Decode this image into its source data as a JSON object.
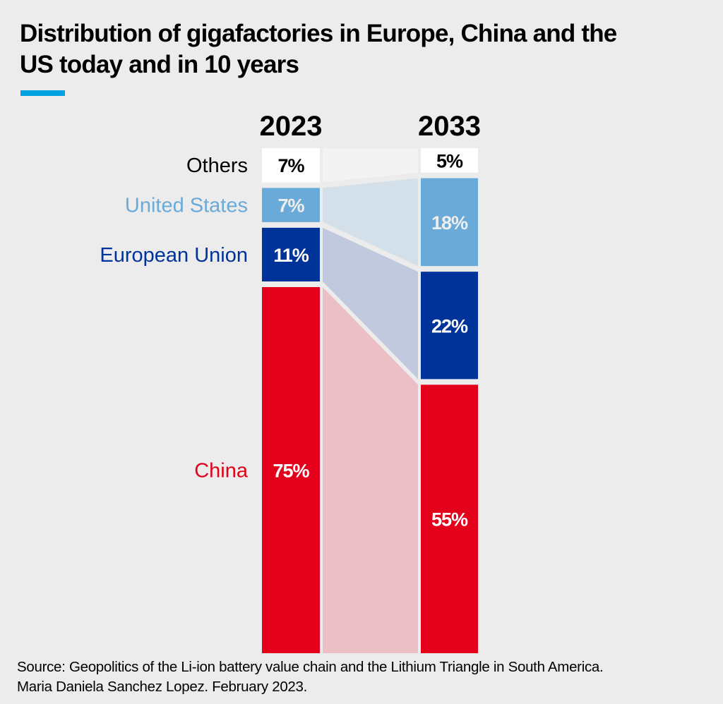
{
  "title": "Distribution of gigafactories in Europe, China and the US today and in 10 years",
  "accent_color": "#00a3e0",
  "source": {
    "line1": "Source: Geopolitics of the Li-ion battery value chain and the Lithium Triangle in South America.",
    "line2": "Maria Daniela Sanchez Lopez. February 2023."
  },
  "chart_data": {
    "type": "bar",
    "subtype": "stacked-100-percent-with-flows",
    "title": "Distribution of gigafactories in Europe, China and the US today and in 10 years",
    "categories": [
      "2023",
      "2033"
    ],
    "series": [
      {
        "name": "Others",
        "values": [
          7,
          5
        ],
        "labels": [
          "7%",
          "5%"
        ],
        "color": "#ffffff",
        "label_color": "#000000",
        "text_color": "#000000",
        "flow_color": "#f3f3f3"
      },
      {
        "name": "United States",
        "values": [
          7,
          18
        ],
        "labels": [
          "7%",
          "18%"
        ],
        "color": "#6aaad8",
        "label_color": "#eeeeee",
        "text_color": "#6aaad8",
        "flow_color": "#d3e0ea"
      },
      {
        "name": "European Union",
        "values": [
          11,
          22
        ],
        "labels": [
          "11%",
          "22%"
        ],
        "color": "#003399",
        "label_color": "#ffffff",
        "text_color": "#003399",
        "flow_color": "#c0c9de"
      },
      {
        "name": "China",
        "values": [
          75,
          55
        ],
        "labels": [
          "75%",
          "55%"
        ],
        "color": "#e2001a",
        "label_color": "#ffffff",
        "text_color": "#e2001a",
        "flow_color": "#ecbec5"
      }
    ],
    "unit": "%",
    "xlabel": "",
    "ylabel": "",
    "legend": "left-side-labels",
    "grid": false
  }
}
